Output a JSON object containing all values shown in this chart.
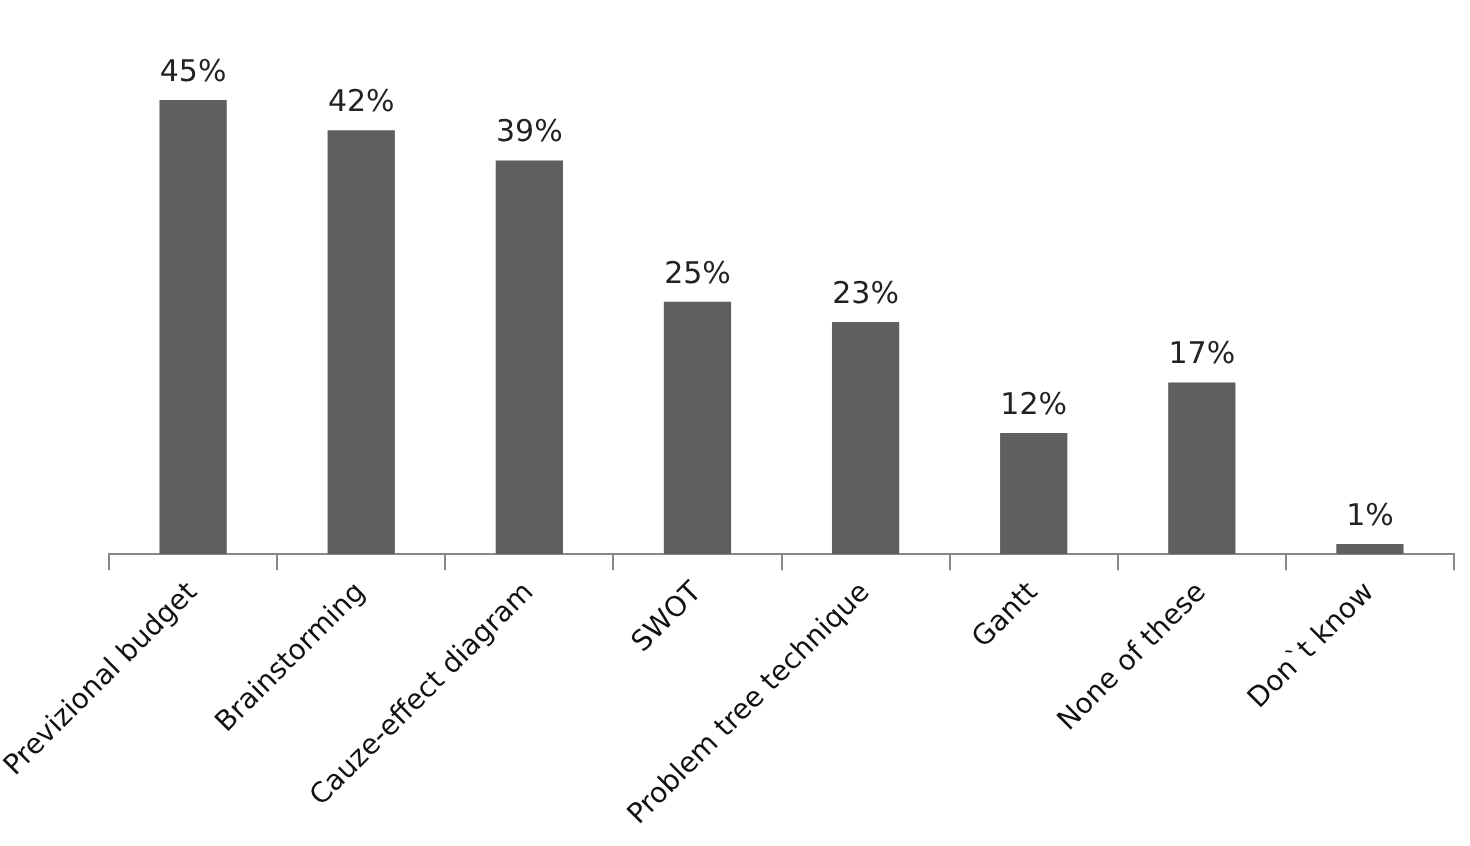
{
  "chart_data": {
    "type": "bar",
    "categories": [
      "Previzional budget",
      "Brainstorming",
      "Cauze-effect diagram",
      "SWOT",
      "Problem tree technique",
      "Gantt",
      "None of these",
      "Don`t know"
    ],
    "values": [
      45,
      42,
      39,
      25,
      23,
      12,
      17,
      1
    ],
    "value_labels": [
      "45%",
      "42%",
      "39%",
      "25%",
      "23%",
      "12%",
      "17%",
      "1%"
    ],
    "color": "#5f5f5f",
    "grid": false,
    "legend": false
  }
}
